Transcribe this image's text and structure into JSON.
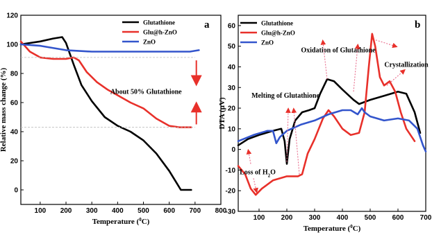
{
  "chart_data": [
    {
      "type": "line",
      "panel_label": "a",
      "xlabel": "Temperature (",
      "xlabel_sup": "0",
      "xlabel_end": "C)",
      "ylabel": "Relative mass change (%)",
      "xlim": [
        25,
        800
      ],
      "ylim": [
        -10,
        120
      ],
      "xticks": [
        100,
        200,
        300,
        400,
        500,
        600,
        700,
        800
      ],
      "yticks": [
        0,
        20,
        40,
        60,
        80,
        100,
        120
      ],
      "legend_position": "top-right",
      "series": [
        {
          "name": "Glutathione",
          "color": "#000000",
          "points": [
            [
              25,
              100
            ],
            [
              100,
              102
            ],
            [
              150,
              104
            ],
            [
              185,
              105
            ],
            [
              200,
              101
            ],
            [
              230,
              86
            ],
            [
              260,
              72
            ],
            [
              300,
              61
            ],
            [
              350,
              50
            ],
            [
              400,
              44
            ],
            [
              450,
              40
            ],
            [
              500,
              34
            ],
            [
              550,
              25
            ],
            [
              600,
              13
            ],
            [
              645,
              0
            ],
            [
              685,
              0
            ]
          ]
        },
        {
          "name": "Glu@h-ZnO",
          "color": "#e8302a",
          "points": [
            [
              25,
              102
            ],
            [
              60,
              95
            ],
            [
              100,
              91
            ],
            [
              150,
              90
            ],
            [
              200,
              90
            ],
            [
              230,
              91
            ],
            [
              250,
              89
            ],
            [
              280,
              81
            ],
            [
              320,
              74
            ],
            [
              360,
              69
            ],
            [
              400,
              65
            ],
            [
              450,
              60
            ],
            [
              500,
              56
            ],
            [
              550,
              49
            ],
            [
              600,
              44
            ],
            [
              640,
              43
            ],
            [
              685,
              43
            ]
          ]
        },
        {
          "name": "ZnO",
          "color": "#3355cc",
          "points": [
            [
              25,
              100
            ],
            [
              100,
              99
            ],
            [
              200,
              96
            ],
            [
              300,
              95
            ],
            [
              400,
              95
            ],
            [
              500,
              95
            ],
            [
              600,
              95
            ],
            [
              680,
              95
            ],
            [
              715,
              96
            ]
          ]
        }
      ],
      "annotations": [
        {
          "text": "About 50% Glutathione",
          "x": 510,
          "y": 66
        }
      ]
    },
    {
      "type": "line",
      "panel_label": "b",
      "xlabel": "Temperature (",
      "xlabel_sup": "0",
      "xlabel_end": "C)",
      "ylabel": "DTA (μV)",
      "xlim": [
        25,
        700
      ],
      "ylim": [
        -30,
        65
      ],
      "xticks": [
        100,
        200,
        300,
        400,
        500,
        600,
        700
      ],
      "yticks": [
        -30,
        -20,
        -10,
        0,
        10,
        20,
        30,
        40,
        50,
        60
      ],
      "legend_position": "top-left",
      "series": [
        {
          "name": "Glutathione",
          "color": "#000000",
          "points": [
            [
              25,
              2
            ],
            [
              60,
              5
            ],
            [
              100,
              7
            ],
            [
              150,
              9
            ],
            [
              180,
              10
            ],
            [
              192,
              4
            ],
            [
              200,
              -7
            ],
            [
              210,
              5
            ],
            [
              230,
              14
            ],
            [
              255,
              18
            ],
            [
              280,
              19
            ],
            [
              300,
              20
            ],
            [
              320,
              27
            ],
            [
              345,
              34
            ],
            [
              370,
              33
            ],
            [
              400,
              29
            ],
            [
              440,
              24
            ],
            [
              460,
              22
            ],
            [
              500,
              24
            ],
            [
              550,
              26
            ],
            [
              600,
              28
            ],
            [
              630,
              27
            ],
            [
              660,
              18
            ],
            [
              680,
              8
            ]
          ]
        },
        {
          "name": "Glu@h-ZnO",
          "color": "#e8302a",
          "points": [
            [
              25,
              -8
            ],
            [
              50,
              -12
            ],
            [
              70,
              -19
            ],
            [
              88,
              -22
            ],
            [
              110,
              -19
            ],
            [
              150,
              -15
            ],
            [
              200,
              -13
            ],
            [
              240,
              -13
            ],
            [
              255,
              -12
            ],
            [
              275,
              -2
            ],
            [
              300,
              5
            ],
            [
              330,
              15
            ],
            [
              350,
              19
            ],
            [
              370,
              16
            ],
            [
              400,
              10
            ],
            [
              430,
              7
            ],
            [
              460,
              8
            ],
            [
              480,
              18
            ],
            [
              495,
              40
            ],
            [
              507,
              56
            ],
            [
              518,
              50
            ],
            [
              535,
              35
            ],
            [
              550,
              31
            ],
            [
              570,
              33
            ],
            [
              590,
              28
            ],
            [
              610,
              18
            ],
            [
              630,
              10
            ],
            [
              660,
              4
            ]
          ]
        },
        {
          "name": "ZnO",
          "color": "#3355cc",
          "points": [
            [
              25,
              4
            ],
            [
              80,
              7
            ],
            [
              130,
              9
            ],
            [
              150,
              9
            ],
            [
              162,
              3
            ],
            [
              175,
              6
            ],
            [
              200,
              9
            ],
            [
              250,
              12
            ],
            [
              300,
              14
            ],
            [
              350,
              17
            ],
            [
              400,
              19
            ],
            [
              430,
              19
            ],
            [
              455,
              17
            ],
            [
              470,
              20
            ],
            [
              480,
              18
            ],
            [
              500,
              16
            ],
            [
              550,
              14
            ],
            [
              600,
              15
            ],
            [
              640,
              14
            ],
            [
              670,
              10
            ],
            [
              690,
              2
            ],
            [
              700,
              -1
            ]
          ]
        }
      ],
      "annotations": [
        {
          "text": "Oxidation of Glutathione",
          "x": 385,
          "y": 47
        },
        {
          "text": "Crystallization",
          "x": 630,
          "y": 40
        },
        {
          "text": "Melting of Glutathione",
          "x": 195,
          "y": 25
        },
        {
          "text": "Loss of H",
          "sub": "2",
          "after": "O",
          "x": 95,
          "y": -12
        }
      ]
    }
  ]
}
